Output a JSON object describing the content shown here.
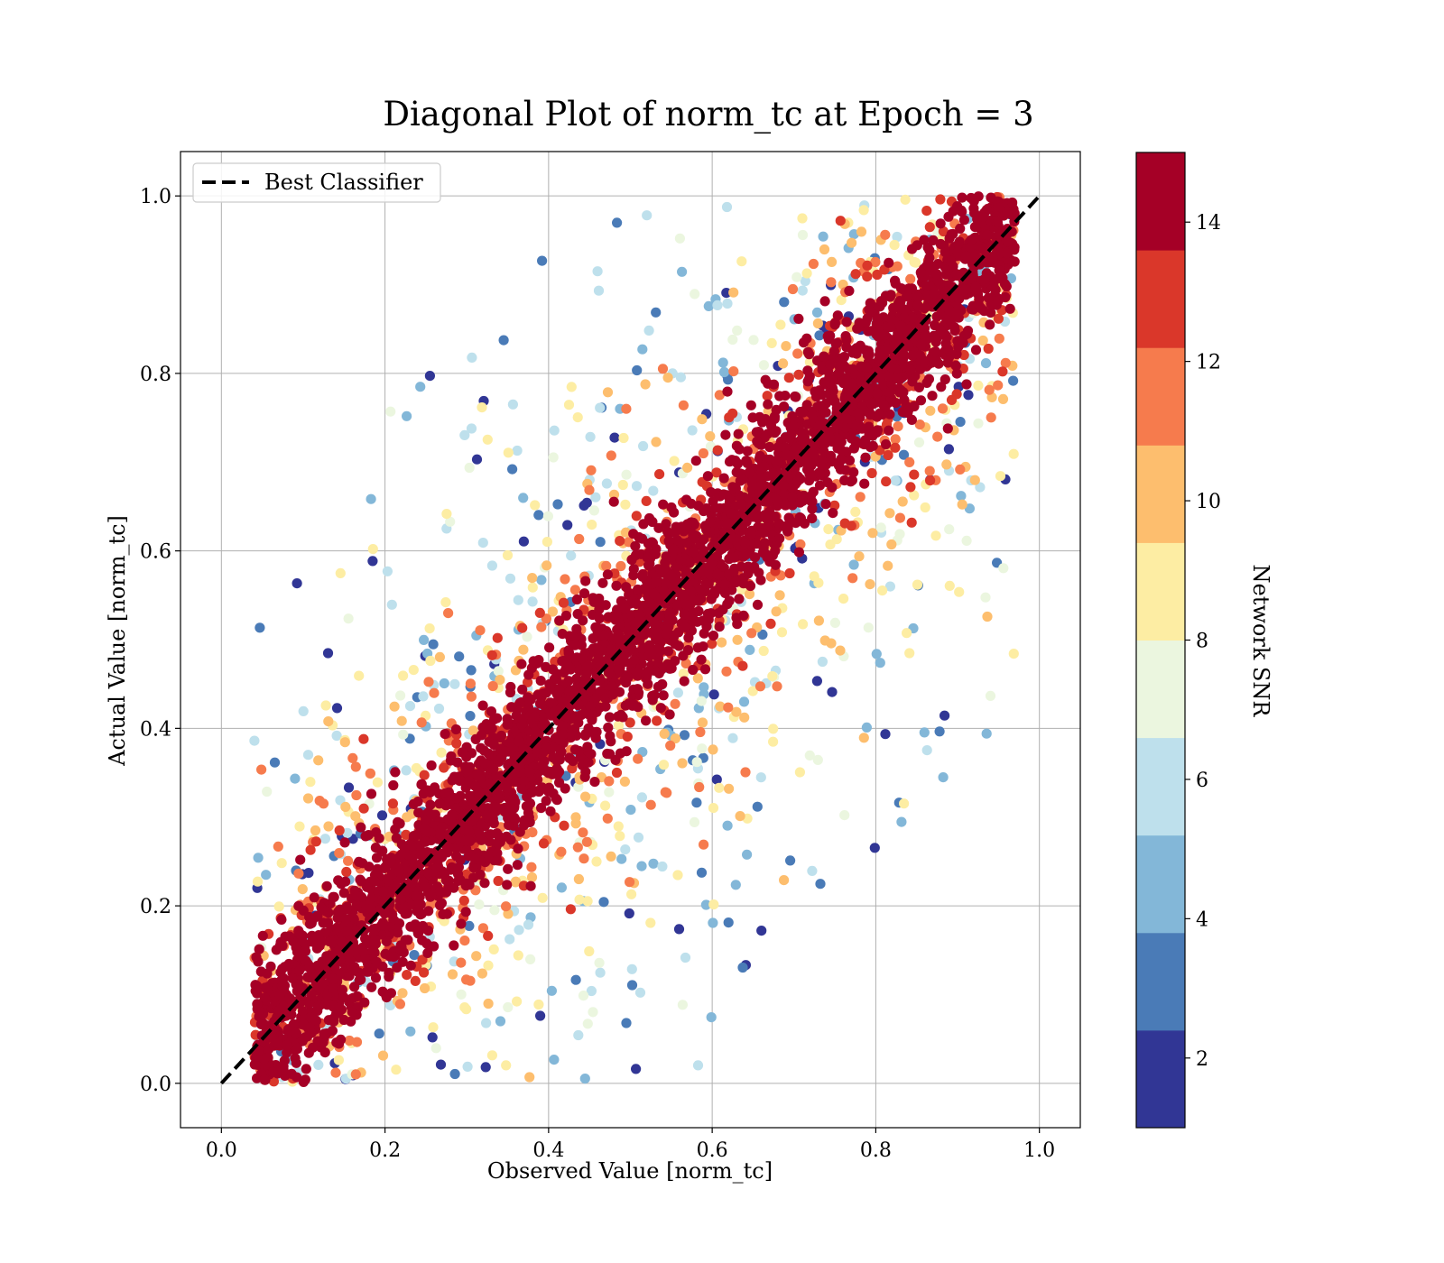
{
  "chart_data": {
    "type": "scatter",
    "title": "Diagonal Plot of norm_tc at Epoch = 3",
    "xlabel": "Observed Value [norm_tc]",
    "ylabel": "Actual Value [norm_tc]",
    "xlim": [
      -0.05,
      1.05
    ],
    "ylim": [
      -0.05,
      1.05
    ],
    "xticks": [
      "0.0",
      "0.2",
      "0.4",
      "0.6",
      "0.8",
      "1.0"
    ],
    "yticks": [
      "0.0",
      "0.2",
      "0.4",
      "0.6",
      "0.8",
      "1.0"
    ],
    "grid": true,
    "legend": {
      "position": "top-left",
      "entries": [
        "Best Classifier"
      ]
    },
    "reference_line": {
      "name": "Best Classifier",
      "style": "dashed",
      "color": "#000000",
      "x": [
        0.0,
        1.0
      ],
      "y": [
        0.0,
        1.0
      ]
    },
    "colorbar": {
      "label": "Network SNR",
      "range": [
        1,
        15
      ],
      "ticks": [
        "2",
        "4",
        "6",
        "8",
        "10",
        "12",
        "14"
      ],
      "levels": [
        {
          "from": 1,
          "to": 2.4,
          "color": "#313695"
        },
        {
          "from": 2.4,
          "to": 3.8,
          "color": "#4a7bb7"
        },
        {
          "from": 3.8,
          "to": 5.2,
          "color": "#83b7d8"
        },
        {
          "from": 5.2,
          "to": 6.6,
          "color": "#bee0ec"
        },
        {
          "from": 6.6,
          "to": 8.0,
          "color": "#ebf6df"
        },
        {
          "from": 8.0,
          "to": 9.4,
          "color": "#fdeda3"
        },
        {
          "from": 9.4,
          "to": 10.8,
          "color": "#fdbe6e"
        },
        {
          "from": 10.8,
          "to": 12.2,
          "color": "#f67b4d"
        },
        {
          "from": 12.2,
          "to": 13.6,
          "color": "#da372a"
        },
        {
          "from": 13.6,
          "to": 15.0,
          "color": "#a50026"
        }
      ]
    },
    "scatter_distribution": {
      "x_support": [
        0.04,
        0.97
      ],
      "y_support": [
        0.0,
        1.0
      ],
      "point_count_rendered": 5200,
      "high_snr_core": "points near y = x are SNR 14 (dark red)",
      "low_snr_outliers": "lower SNR points spread further from the diagonal"
    }
  }
}
